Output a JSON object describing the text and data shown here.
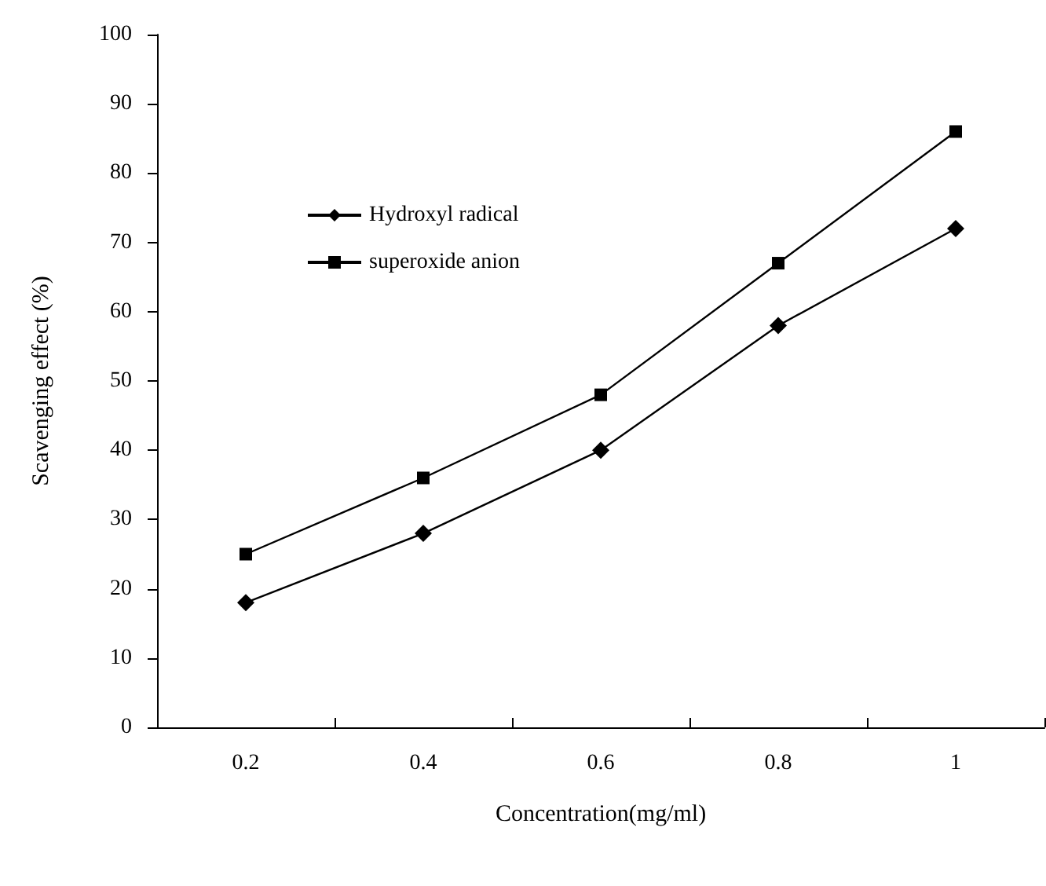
{
  "chart_data": {
    "type": "line",
    "xlabel": "Concentration(mg/ml)",
    "ylabel": "Scavenging effect (%)",
    "categories": [
      "0.2",
      "0.4",
      "0.6",
      "0.8",
      "1"
    ],
    "series": [
      {
        "name": "Hydroxyl radical",
        "color": "#000000",
        "marker": "diamond",
        "values": [
          18,
          28,
          40,
          58,
          72
        ]
      },
      {
        "name": "superoxide anion",
        "color": "#000000",
        "marker": "square",
        "values": [
          25,
          36,
          48,
          67,
          86
        ]
      }
    ],
    "ylim": [
      0,
      100
    ],
    "yticks": [
      0,
      10,
      20,
      30,
      40,
      50,
      60,
      70,
      80,
      90,
      100
    ],
    "grid": false,
    "legend": "top left",
    "line_style": "solid"
  }
}
